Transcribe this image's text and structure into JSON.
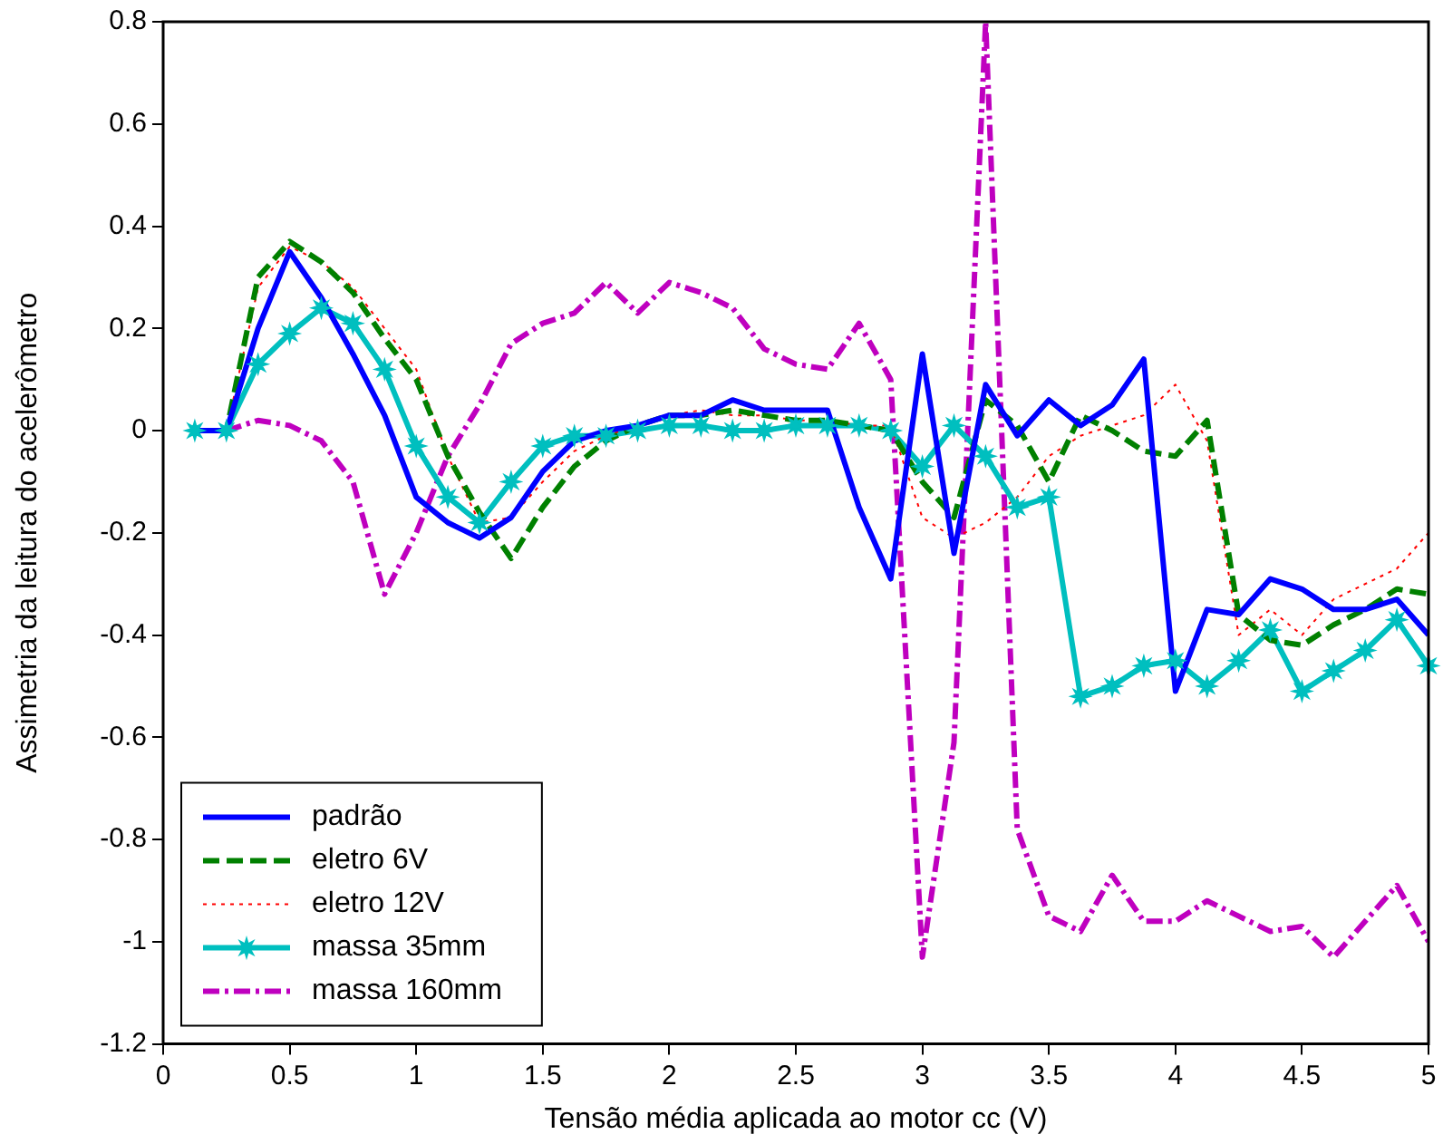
{
  "chart_data": {
    "type": "line",
    "xlabel": "Tensão média aplicada ao motor cc (V)",
    "ylabel": "Assimetria da leitura do acelerômetro",
    "x": [
      0.125,
      0.25,
      0.375,
      0.5,
      0.625,
      0.75,
      0.875,
      1.0,
      1.125,
      1.25,
      1.375,
      1.5,
      1.625,
      1.75,
      1.875,
      2.0,
      2.125,
      2.25,
      2.375,
      2.5,
      2.625,
      2.75,
      2.875,
      3.0,
      3.125,
      3.25,
      3.375,
      3.5,
      3.625,
      3.75,
      3.875,
      4.0,
      4.125,
      4.25,
      4.375,
      4.5,
      4.625,
      4.75,
      4.875,
      5.0
    ],
    "series": [
      {
        "name": "padrão",
        "color": "#0000ff",
        "line_style": "solid",
        "marker": "none",
        "values": [
          0,
          0,
          0.2,
          0.35,
          0.26,
          0.15,
          0.03,
          -0.13,
          -0.18,
          -0.21,
          -0.17,
          -0.08,
          -0.02,
          0,
          0.01,
          0.03,
          0.03,
          0.06,
          0.04,
          0.04,
          0.04,
          -0.15,
          -0.29,
          0.15,
          -0.24,
          0.09,
          -0.01,
          0.06,
          0.01,
          0.05,
          0.14,
          -0.51,
          -0.35,
          -0.36,
          -0.29,
          -0.31,
          -0.35,
          -0.35,
          -0.33,
          -0.4
        ]
      },
      {
        "name": "eletro 6V",
        "color": "#008000",
        "line_style": "dashed",
        "marker": "none",
        "values": [
          0,
          0,
          0.3,
          0.37,
          0.33,
          0.27,
          0.18,
          0.1,
          -0.05,
          -0.16,
          -0.25,
          -0.15,
          -0.07,
          -0.02,
          0.01,
          0.03,
          0.03,
          0.04,
          0.03,
          0.02,
          0.02,
          0.01,
          0,
          -0.1,
          -0.17,
          0.06,
          0.01,
          -0.1,
          0.03,
          0,
          -0.04,
          -0.05,
          0.02,
          -0.36,
          -0.41,
          -0.42,
          -0.38,
          -0.35,
          -0.31,
          -0.32
        ]
      },
      {
        "name": "eletro 12V",
        "color": "#ff0000",
        "line_style": "dotted",
        "marker": "none",
        "values": [
          0,
          0,
          0.28,
          0.36,
          0.33,
          0.28,
          0.2,
          0.12,
          -0.05,
          -0.18,
          -0.17,
          -0.1,
          -0.04,
          -0.01,
          0.01,
          0.03,
          0.04,
          0.03,
          0.03,
          0.02,
          0.02,
          0.01,
          0.01,
          -0.17,
          -0.21,
          -0.18,
          -0.13,
          -0.05,
          -0.01,
          0.01,
          0.03,
          0.09,
          -0.02,
          -0.4,
          -0.35,
          -0.4,
          -0.33,
          -0.3,
          -0.27,
          -0.2
        ]
      },
      {
        "name": "massa 35mm",
        "color": "#00bfbf",
        "line_style": "solid",
        "marker": "star",
        "values": [
          0,
          0,
          0.13,
          0.19,
          0.24,
          0.21,
          0.12,
          -0.03,
          -0.13,
          -0.18,
          -0.1,
          -0.03,
          -0.01,
          -0.01,
          0,
          0.01,
          0.01,
          0,
          0,
          0.01,
          0.01,
          0.01,
          0,
          -0.07,
          0.01,
          -0.05,
          -0.15,
          -0.13,
          -0.52,
          -0.5,
          -0.46,
          -0.45,
          -0.5,
          -0.45,
          -0.39,
          -0.51,
          -0.47,
          -0.43,
          -0.37,
          -0.46
        ]
      },
      {
        "name": "massa 160mm",
        "color": "#bf00bf",
        "line_style": "dashdot",
        "marker": "none",
        "values": [
          0,
          0,
          0.02,
          0.01,
          -0.02,
          -0.1,
          -0.32,
          -0.2,
          -0.05,
          0.05,
          0.17,
          0.21,
          0.23,
          0.29,
          0.23,
          0.29,
          0.27,
          0.24,
          0.16,
          0.13,
          0.12,
          0.21,
          0.1,
          -1.03,
          -0.61,
          0.8,
          -0.78,
          -0.95,
          -0.98,
          -0.87,
          -0.96,
          -0.96,
          -0.92,
          -0.95,
          -0.98,
          -0.97,
          -1.03,
          -0.96,
          -0.89,
          -1.0
        ]
      }
    ],
    "xlim": [
      0,
      5
    ],
    "xticks": [
      0,
      0.5,
      1,
      1.5,
      2,
      2.5,
      3,
      3.5,
      4,
      4.5,
      5
    ],
    "ylim": [
      -1.2,
      0.8
    ],
    "yticks": [
      -1.2,
      -1,
      -0.8,
      -0.6,
      -0.4,
      -0.2,
      0,
      0.2,
      0.4,
      0.6,
      0.8
    ],
    "grid": false,
    "legend": "bottom left"
  }
}
